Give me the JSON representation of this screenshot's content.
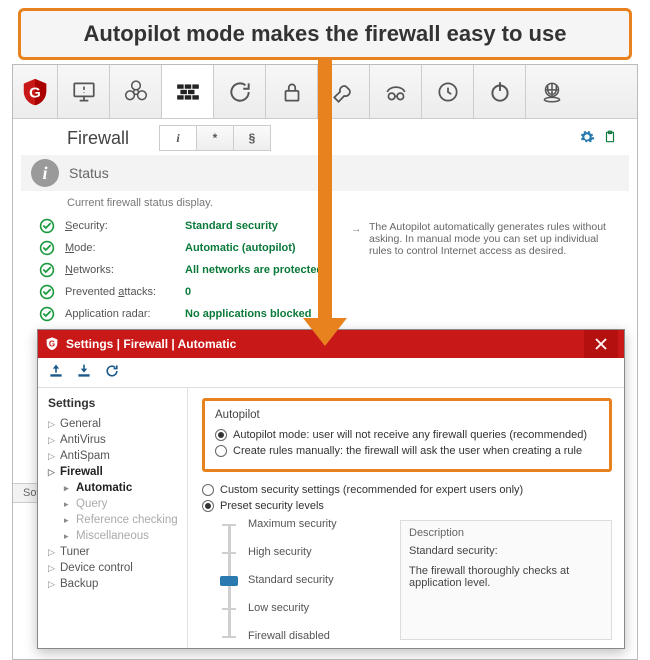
{
  "colors": {
    "accent_orange": "#e8821e",
    "brand_red": "#c91818",
    "ok_green": "#0a7a3a",
    "link_blue": "#2a7ab0"
  },
  "callout": {
    "text": "Autopilot mode makes the firewall easy to use"
  },
  "toolbar_icons": [
    "shield-logo",
    "monitor-warning",
    "biohazard",
    "firewall",
    "reload",
    "lock",
    "wrench",
    "incognito",
    "history",
    "power",
    "globe-disk"
  ],
  "section": {
    "title": "Firewall",
    "subtabs": [
      "i",
      "*",
      "§"
    ],
    "status_heading": "Status",
    "status_desc": "Current firewall status display.",
    "items": [
      {
        "label": "Security:",
        "underline": "S",
        "value": "Standard security"
      },
      {
        "label": "Mode:",
        "underline": "M",
        "value": "Automatic (autopilot)"
      },
      {
        "label": "Networks:",
        "underline": "N",
        "value": "All networks are protected"
      },
      {
        "label": "Prevented attacks:",
        "underline": "a",
        "value": "0"
      },
      {
        "label": "Application radar:",
        "underline": "",
        "value": "No applications blocked"
      }
    ],
    "note": "The Autopilot automatically generates rules without asking. In manual mode you can set up individual rules to control Internet access as desired."
  },
  "soft_tab": "Softwa",
  "dialog": {
    "title": "Settings | Firewall | Automatic",
    "tools": [
      "import-icon",
      "export-icon",
      "refresh-icon"
    ],
    "sidebar_title": "Settings",
    "tree": [
      {
        "label": "General",
        "children": []
      },
      {
        "label": "AntiVirus",
        "children": []
      },
      {
        "label": "AntiSpam",
        "children": []
      },
      {
        "label": "Firewall",
        "expanded": true,
        "children": [
          {
            "label": "Automatic",
            "selected": true
          },
          {
            "label": "Query"
          },
          {
            "label": "Reference checking"
          },
          {
            "label": "Miscellaneous"
          }
        ]
      },
      {
        "label": "Tuner",
        "children": []
      },
      {
        "label": "Device control",
        "children": []
      },
      {
        "label": "Backup",
        "children": []
      }
    ],
    "autopilot": {
      "title": "Autopilot",
      "opt1": "Autopilot mode: user will not receive any firewall queries (recommended)",
      "opt2": "Create rules manually: the firewall will ask the user when creating a rule",
      "selected": 0
    },
    "security_mode": {
      "custom": "Custom security settings (recommended for expert users only)",
      "preset": "Preset security levels",
      "selected": 1
    },
    "levels": [
      "Maximum security",
      "High security",
      "Standard security",
      "Low security",
      "Firewall disabled"
    ],
    "level_selected_index": 2,
    "description": {
      "heading": "Description",
      "title": "Standard security:",
      "body": "The firewall thoroughly checks at application level."
    }
  }
}
